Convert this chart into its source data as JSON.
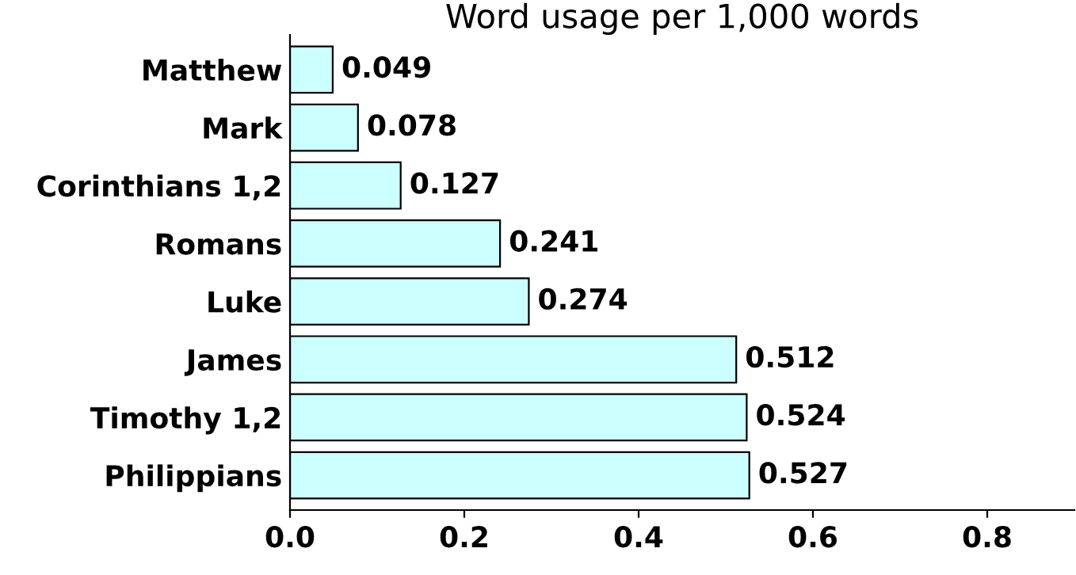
{
  "chart_data": {
    "type": "bar",
    "orientation": "horizontal",
    "title": "Word usage per 1,000 words",
    "categories": [
      "Matthew",
      "Mark",
      "Corinthians 1,2",
      "Romans",
      "Luke",
      "James",
      "Timothy 1,2",
      "Philippians"
    ],
    "values": [
      0.049,
      0.078,
      0.127,
      0.241,
      0.274,
      0.512,
      0.524,
      0.527
    ],
    "color": "#ccffff",
    "data_labels": true,
    "grid": false,
    "legend": false,
    "xlim": [
      0,
      0.9
    ],
    "xticks": [
      {
        "value": 0,
        "label": "0.0"
      },
      {
        "value": 0.2,
        "label": "0.2"
      },
      {
        "value": 0.4,
        "label": "0.4"
      },
      {
        "value": 0.6,
        "label": "0.6"
      },
      {
        "value": 0.8,
        "label": "0.8"
      }
    ]
  }
}
